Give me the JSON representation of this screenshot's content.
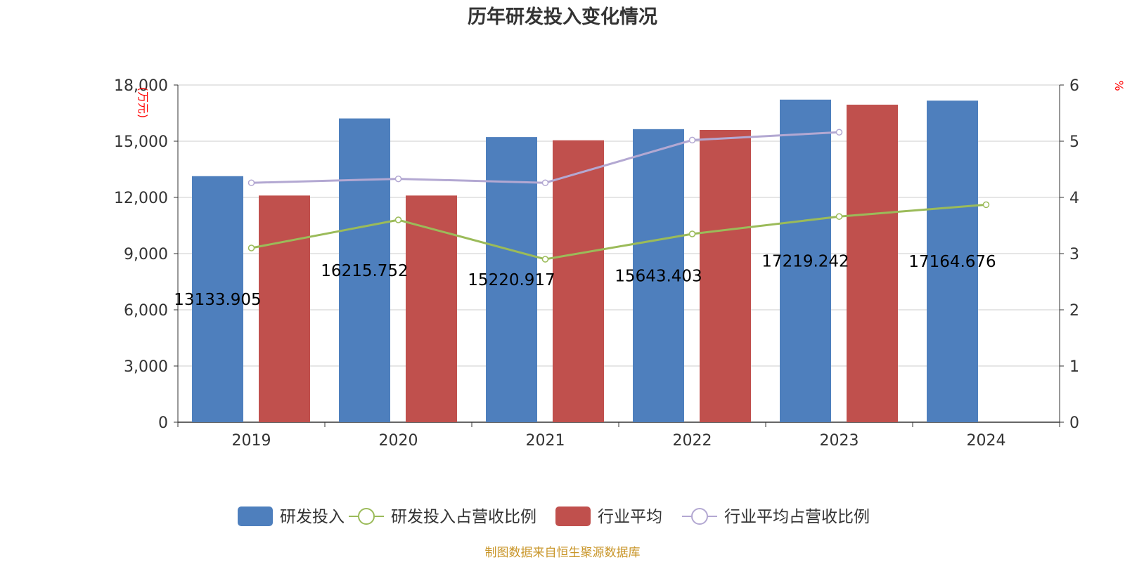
{
  "chart_data": {
    "type": "bar",
    "title": "历年研发投入变化情况",
    "categories": [
      "2019",
      "2020",
      "2021",
      "2022",
      "2023",
      "2024"
    ],
    "y_left": {
      "unit_label": "(万元)",
      "ylim": [
        0,
        18000
      ],
      "ticks": [
        "0",
        "3,000",
        "6,000",
        "9,000",
        "12,000",
        "15,000",
        "18,000"
      ]
    },
    "y_right": {
      "unit_label": "%",
      "ylim": [
        0,
        6
      ],
      "ticks": [
        "0",
        "1",
        "2",
        "3",
        "4",
        "5",
        "6"
      ]
    },
    "grid": true,
    "legend_position": "bottom",
    "series": [
      {
        "name": "研发投入",
        "type": "bar",
        "axis": "left",
        "color": "#4e7fbd",
        "values": [
          13133.905,
          16215.752,
          15220.917,
          15643.403,
          17219.242,
          17164.676
        ],
        "labels": [
          "13133.905",
          "16215.752",
          "15220.917",
          "15643.403",
          "17219.242",
          "17164.676"
        ]
      },
      {
        "name": "研发投入占营收比例",
        "type": "line",
        "axis": "right",
        "color": "#9bbb59",
        "values": [
          3.1,
          3.6,
          2.9,
          3.35,
          3.66,
          3.87
        ]
      },
      {
        "name": "行业平均",
        "type": "bar",
        "axis": "left",
        "color": "#c0504d",
        "values": [
          12100,
          12100,
          15050,
          15600,
          16950,
          null
        ]
      },
      {
        "name": "行业平均占营收比例",
        "type": "line",
        "axis": "right",
        "color": "#b3a8d2",
        "values": [
          4.26,
          4.33,
          4.26,
          5.02,
          5.16,
          null
        ]
      }
    ],
    "source": "制图数据来自恒生聚源数据库"
  }
}
